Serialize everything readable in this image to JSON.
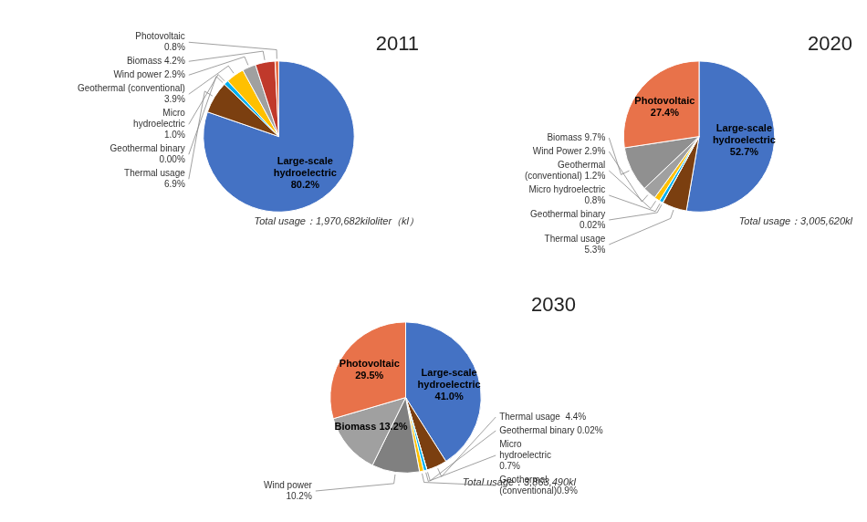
{
  "chart_data": [
    {
      "type": "pie",
      "title": "2011",
      "values": [
        80.2,
        6.9,
        0.0,
        1.0,
        3.9,
        2.9,
        4.2,
        0.8
      ],
      "value_labels": [
        "Large-scale\nhydroelectric\n80.2%",
        "Thermal usage\n6.9%",
        "Geothermal binary\n0.00%",
        "Micro\nhydroelectric\n1.0%",
        "Geothermal (conventional)\n3.9%",
        "Wind power 2.9%",
        "Biomass 4.2%",
        "Photovoltaic\n0.8%"
      ],
      "colors": [
        "#4472C4",
        "#7B3F10",
        "#4CAF50",
        "#00B0F0",
        "#FFC000",
        "#A0A0A0",
        "#C0392B",
        "#E8724A"
      ],
      "annotations": [
        "Total usage：1,970,682kiloliter（kl）"
      ],
      "data_labels": true
    },
    {
      "type": "pie",
      "title": "2020",
      "values": [
        52.7,
        5.3,
        0.02,
        0.8,
        1.2,
        2.9,
        9.7,
        27.4
      ],
      "value_labels": [
        "Large-scale\nhydroelectric\n52.7%",
        "Thermal usage\n5.3%",
        "Geothermal binary\n0.02%",
        "Micro hydroelectric\n0.8%",
        "Geothermal\n(conventional) 1.2%",
        "Wind Power 2.9%",
        "Biomass 9.7%",
        "Photovoltaic\n27.4%"
      ],
      "colors": [
        "#4472C4",
        "#7B3F10",
        "#4CAF50",
        "#00B0F0",
        "#FFC000",
        "#A0A0A0",
        "#909090",
        "#E8724A"
      ],
      "annotations": [
        "Total usage：3,005,620kl"
      ],
      "data_labels": true
    },
    {
      "type": "pie",
      "title": "2030",
      "values": [
        41.0,
        4.4,
        0.02,
        0.7,
        0.9,
        10.2,
        13.2,
        29.5
      ],
      "value_labels": [
        "Large-scale\nhydroelectric\n41.0%",
        "Thermal usage  4.4%",
        "Geothermal binary 0.02%",
        "Micro\nhydroelectric\n0.7%",
        "Geothermal\n(conventional)0.9%",
        "Wind power\n10.2%",
        "Biomass 13.2%",
        "Photovoltaic\n29.5%"
      ],
      "colors": [
        "#4472C4",
        "#7B3F10",
        "#4CAF50",
        "#00B0F0",
        "#FFC000",
        "#808080",
        "#A0A0A0",
        "#E8724A"
      ],
      "annotations": [
        "Total usage：3,863,490kl"
      ],
      "data_labels": true
    }
  ]
}
